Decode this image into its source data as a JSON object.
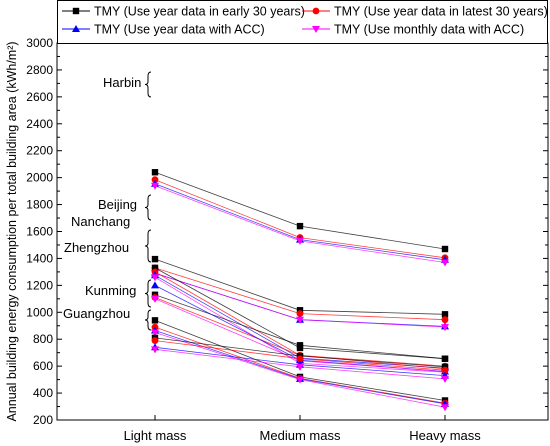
{
  "chart_data": {
    "type": "line",
    "title": "",
    "xlabel": "",
    "ylabel": "Annual building energy consumption per total building area (kWh/m²)",
    "categories": [
      "Light mass",
      "Medium mass",
      "Heavy mass"
    ],
    "ylim": [
      200,
      3000
    ],
    "yticks": [
      200,
      400,
      600,
      800,
      1000,
      1200,
      1400,
      1600,
      1800,
      2000,
      2200,
      2400,
      2600,
      2800,
      3000
    ],
    "legend_position": "top",
    "series_styles": [
      {
        "name": "TMY (Use year data in early 30 years)",
        "color": "#000000",
        "marker": "square"
      },
      {
        "name": "TMY (Use year data in latest 30 years)",
        "color": "#ff0000",
        "marker": "circle"
      },
      {
        "name": "TMY (Use year data with ACC)",
        "color": "#0000ff",
        "marker": "triangle-up"
      },
      {
        "name": "TMY (Use monthly data with ACC)",
        "color": "#ff00ff",
        "marker": "triangle-down"
      }
    ],
    "cities": [
      {
        "name": "Harbin",
        "values": [
          [
            2040,
            1640,
            1470
          ],
          [
            1985,
            1555,
            1405
          ],
          [
            1955,
            1540,
            1390
          ],
          [
            1940,
            1530,
            1370
          ]
        ]
      },
      {
        "name": "Beijing",
        "values": [
          [
            1395,
            1015,
            985
          ],
          [
            1330,
            990,
            945
          ],
          [
            1290,
            945,
            895
          ],
          [
            1290,
            945,
            890
          ]
        ]
      },
      {
        "name": "Nanchang",
        "values": [
          [
            1330,
            735,
            655
          ],
          [
            1300,
            680,
            600
          ],
          [
            1275,
            660,
            585
          ],
          [
            1260,
            620,
            555
          ]
        ]
      },
      {
        "name": "Zhengzhou",
        "values": [
          [
            1130,
            755,
            655
          ],
          [
            1110,
            680,
            580
          ],
          [
            1200,
            645,
            560
          ],
          [
            1100,
            640,
            560
          ]
        ]
      },
      {
        "name": "Kunming",
        "values": [
          [
            940,
            520,
            345
          ],
          [
            890,
            510,
            325
          ],
          [
            865,
            505,
            320
          ],
          [
            850,
            500,
            295
          ]
        ]
      },
      {
        "name": "Guangzhou",
        "values": [
          [
            810,
            675,
            595
          ],
          [
            790,
            655,
            570
          ],
          [
            740,
            610,
            530
          ],
          [
            725,
            595,
            505
          ]
        ]
      }
    ]
  }
}
